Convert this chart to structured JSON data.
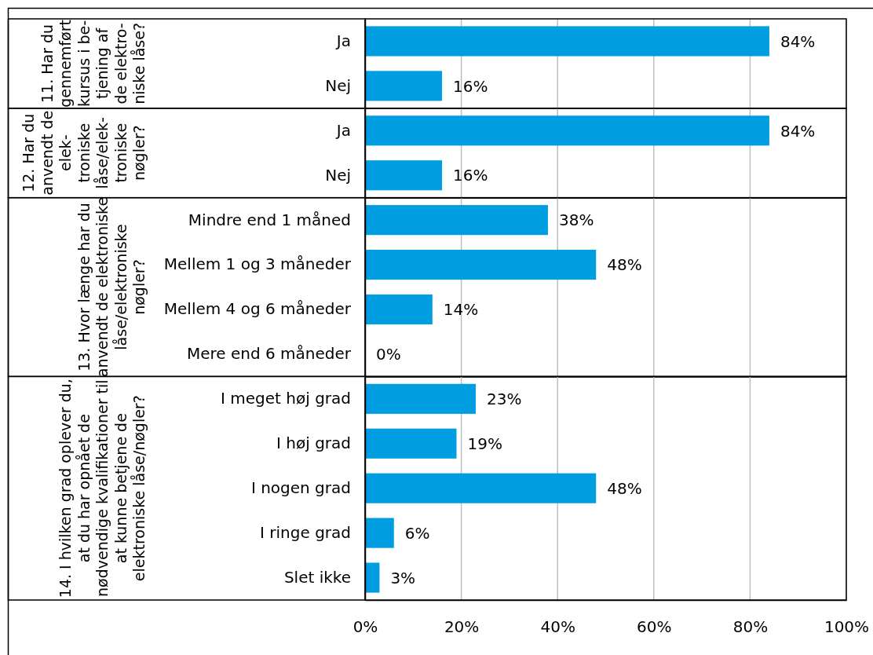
{
  "chart_data": [
    {
      "type": "bar",
      "orientation": "horizontal",
      "ylabel": "11. Har du\ngennemført\nkursus i be-\ntjening af\nde elektro-\nniske låse?",
      "categories": [
        "Ja",
        "Nej"
      ],
      "values": [
        84,
        16
      ],
      "value_labels": [
        "84%",
        "16%"
      ],
      "color": "#009ee0",
      "xlim": [
        0,
        100
      ],
      "xticks": [
        {
          "value": 0,
          "label": null
        },
        {
          "value": 20,
          "label": null
        },
        {
          "value": 40,
          "label": null
        },
        {
          "value": 60,
          "label": null
        },
        {
          "value": 80,
          "label": null
        },
        {
          "value": 100,
          "label": null
        }
      ],
      "grid": "x",
      "tick_labels": "y"
    },
    {
      "type": "bar",
      "orientation": "horizontal",
      "ylabel": "12. Har du\nanvendt de\nelek-\ntroniske\nlåse/elek-\ntroniske\nnøgler?",
      "categories": [
        "Ja",
        "Nej"
      ],
      "values": [
        84,
        16
      ],
      "value_labels": [
        "84%",
        "16%"
      ],
      "color": "#009ee0",
      "xlim": [
        0,
        100
      ],
      "xticks": [
        {
          "value": 0,
          "label": null
        },
        {
          "value": 20,
          "label": null
        },
        {
          "value": 40,
          "label": null
        },
        {
          "value": 60,
          "label": null
        },
        {
          "value": 80,
          "label": null
        },
        {
          "value": 100,
          "label": null
        }
      ],
      "grid": "x",
      "tick_labels": "y"
    },
    {
      "type": "bar",
      "orientation": "horizontal",
      "ylabel": "13. Hvor længe har du\nanvendt de elektroniske\nlåse/elektroniske\nnøgler?",
      "categories": [
        "Mindre end 1 måned",
        "Mellem 1 og 3 måneder",
        "Mellem 4 og 6 måneder",
        "Mere end 6 måneder"
      ],
      "values": [
        38,
        48,
        14,
        0
      ],
      "value_labels": [
        "38%",
        "48%",
        "14%",
        "0%"
      ],
      "color": "#009ee0",
      "xlim": [
        0,
        100
      ],
      "xticks": [
        {
          "value": 0,
          "label": null
        },
        {
          "value": 20,
          "label": null
        },
        {
          "value": 40,
          "label": null
        },
        {
          "value": 60,
          "label": null
        },
        {
          "value": 80,
          "label": null
        },
        {
          "value": 100,
          "label": null
        }
      ],
      "grid": "x",
      "tick_labels": "y"
    },
    {
      "type": "bar",
      "orientation": "horizontal",
      "ylabel": "14. I hvilken grad oplever du,\nat du har opnået de\nnødvendige kvalifikationer til\nat kunne betjene de\nelektroniske låse/nøgler?",
      "categories": [
        "I meget høj grad",
        "I høj grad",
        "I nogen grad",
        "I ringe grad",
        "Slet ikke"
      ],
      "values": [
        23,
        19,
        48,
        6,
        3
      ],
      "value_labels": [
        "23%",
        "19%",
        "48%",
        "6%",
        "3%"
      ],
      "color": "#009ee0",
      "xlim": [
        0,
        100
      ],
      "xticks": [
        {
          "value": 0,
          "label": "0%"
        },
        {
          "value": 20,
          "label": "20%"
        },
        {
          "value": 40,
          "label": "40%"
        },
        {
          "value": 60,
          "label": "60%"
        },
        {
          "value": 80,
          "label": "80%"
        },
        {
          "value": 100,
          "label": "100%"
        }
      ],
      "grid": "x"
    }
  ]
}
